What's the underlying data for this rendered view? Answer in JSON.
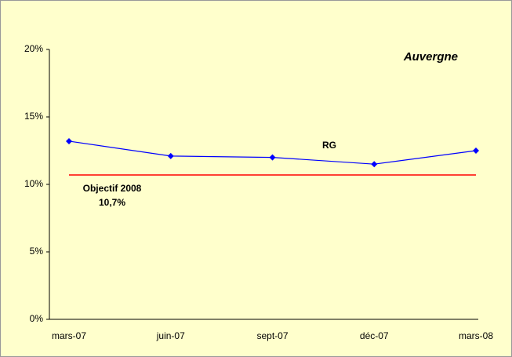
{
  "chart_data": {
    "type": "line",
    "title": "Auvergne",
    "categories": [
      "mars-07",
      "juin-07",
      "sept-07",
      "déc-07",
      "mars-08"
    ],
    "series": [
      {
        "name": "RG",
        "color": "#0000ff",
        "values": [
          13.2,
          12.1,
          12.0,
          11.5,
          12.5
        ]
      }
    ],
    "objective": {
      "name": "Objectif 2008",
      "value": 10.7,
      "value_label": "10,7%",
      "color": "#ff0000"
    },
    "ylim": [
      0,
      20
    ],
    "yticks": [
      {
        "value": 0,
        "label": "0%"
      },
      {
        "value": 5,
        "label": "5%"
      },
      {
        "value": 10,
        "label": "10%"
      },
      {
        "value": 15,
        "label": "15%"
      },
      {
        "value": 20,
        "label": "20%"
      }
    ],
    "grid": false
  }
}
